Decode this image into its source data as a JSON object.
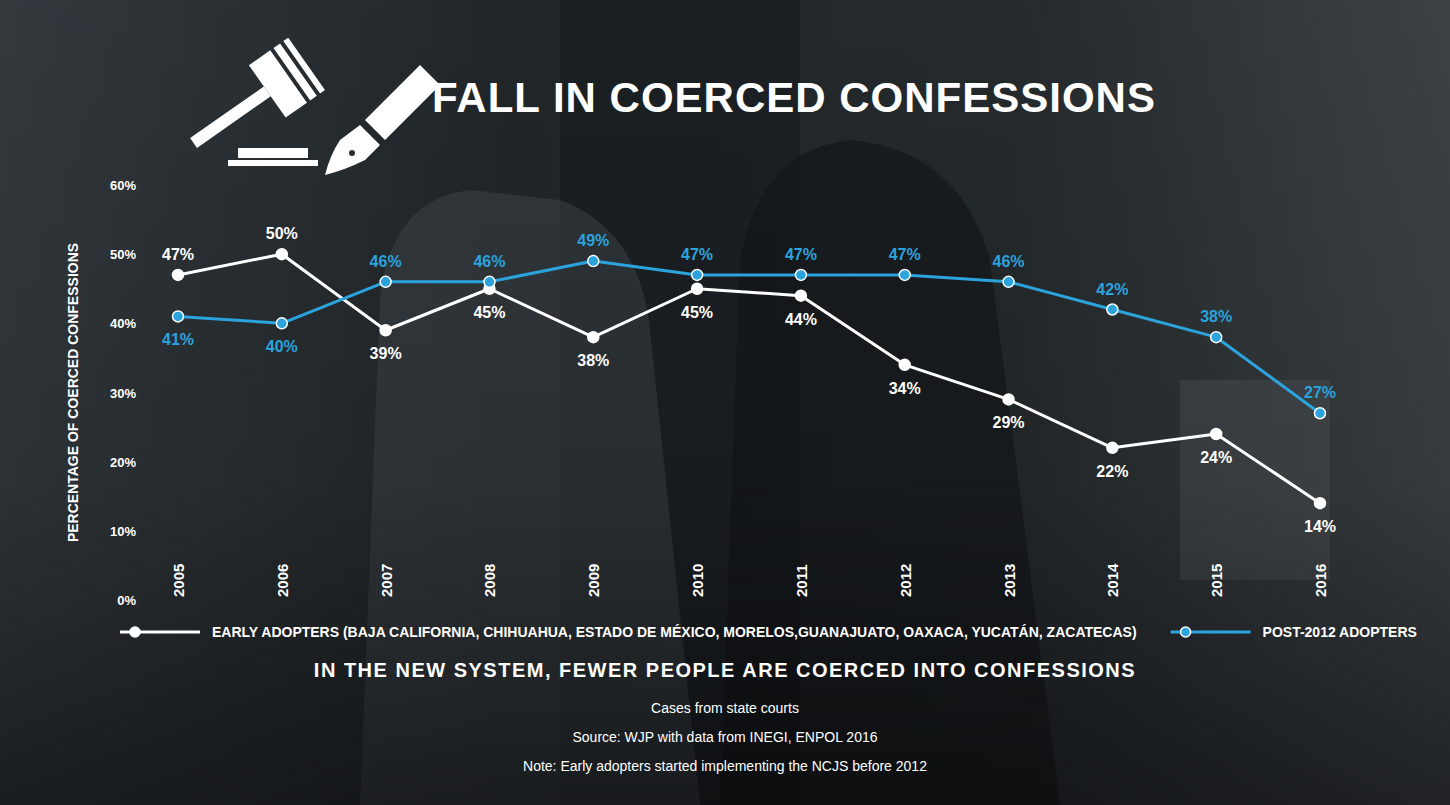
{
  "chart_data": {
    "type": "line",
    "title": "FALL IN COERCED CONFESSIONS",
    "subtitle": "IN THE NEW SYSTEM, FEWER PEOPLE ARE COERCED INTO CONFESSIONS",
    "annotations": [
      "Cases from state courts",
      "Source: WJP with data from INEGI, ENPOL 2016",
      "Note: Early adopters started implementing the NCJS before 2012"
    ],
    "ylabel": "PERCENTAGE OF COERCED CONFESSIONS",
    "categories": [
      "2005",
      "2006",
      "2007",
      "2008",
      "2009",
      "2010",
      "2011",
      "2012",
      "2013",
      "2014",
      "2015",
      "2016"
    ],
    "series": [
      {
        "name": "EARLY ADOPTERS (BAJA CALIFORNIA, CHIHUAHUA, ESTADO DE MÉXICO, MORELOS,GUANAJUATO, OAXACA, YUCATÁN, ZACATECAS)",
        "color": "#ffffff",
        "values": [
          47,
          50,
          39,
          45,
          38,
          45,
          44,
          34,
          29,
          22,
          24,
          14
        ],
        "value_labels": [
          "47%",
          "50%",
          "39%",
          "45%",
          "38%",
          "45%",
          "44%",
          "34%",
          "29%",
          "22%",
          "24%",
          "14%"
        ]
      },
      {
        "name": "POST-2012 ADOPTERS",
        "color": "#2ba3dd",
        "values": [
          41,
          40,
          46,
          46,
          49,
          47,
          47,
          47,
          46,
          42,
          38,
          27
        ],
        "value_labels": [
          "41%",
          "40%",
          "46%",
          "46%",
          "49%",
          "47%",
          "47%",
          "47%",
          "46%",
          "42%",
          "38%",
          "27%"
        ]
      }
    ],
    "ylim": [
      0,
      60
    ],
    "yticks": [
      {
        "value": 0,
        "label": "0%"
      },
      {
        "value": 10,
        "label": "10%"
      },
      {
        "value": 20,
        "label": "20%"
      },
      {
        "value": 30,
        "label": "30%"
      },
      {
        "value": 40,
        "label": "40%"
      },
      {
        "value": 50,
        "label": "50%"
      },
      {
        "value": 60,
        "label": "60%"
      }
    ],
    "grid": false,
    "legend": "bottom",
    "data_labels": true,
    "marker": "circle",
    "line_style": "solid"
  }
}
